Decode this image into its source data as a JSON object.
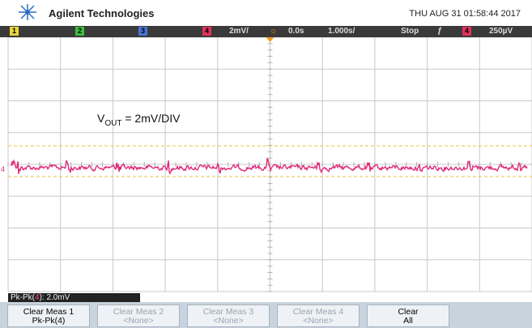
{
  "header": {
    "brand": "Agilent Technologies",
    "datetime": "THU AUG 31 01:58:44 2017"
  },
  "status": {
    "channels": [
      "1",
      "2",
      "3",
      "4"
    ],
    "scale": "2mV/",
    "delay": "0.0s",
    "timebase": "1.000s/",
    "run_state": "Stop",
    "trigger_channel": "4",
    "trigger_level": "250µV"
  },
  "channel_marker": "4",
  "annotation": {
    "symbol": "V",
    "subscript": "OUT",
    "text": " = 2mV/DIV"
  },
  "measurement": {
    "prefix": "Pk-Pk(",
    "channel": "4",
    "suffix": "): 2.0mV"
  },
  "softkeys": [
    {
      "line1": "Clear Meas 1",
      "line2": "Pk-Pk(4)"
    },
    {
      "line1": "Clear Meas 2",
      "line2": "<None>"
    },
    {
      "line1": "Clear Meas 3",
      "line2": "<None>"
    },
    {
      "line1": "Clear Meas 4",
      "line2": "<None>"
    },
    {
      "line1": "Clear",
      "line2": "All"
    }
  ]
}
